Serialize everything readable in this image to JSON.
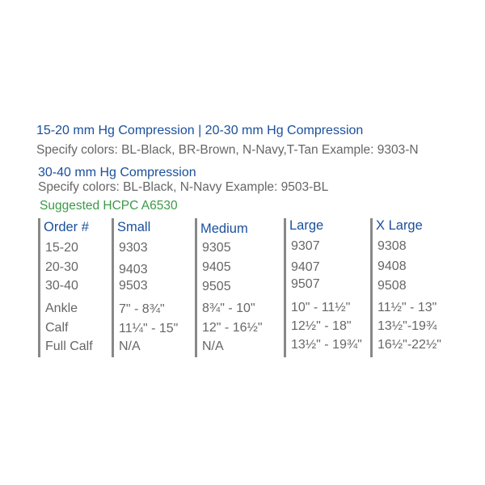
{
  "heading1": "15-20 mm Hg Compression  |  20-30 mm Hg Compression",
  "colors1": "Specify colors: BL-Black, BR-Brown, N-Navy,T-Tan Example: 9303-N",
  "heading2": "30-40 mm Hg Compression",
  "colors2": "Specify colors: BL-Black, N-Navy Example: 9503-BL",
  "hcpc": "Suggested HCPC A6530",
  "table": {
    "columns": [
      {
        "header": "Order #",
        "cells": [
          "15-20",
          "20-30",
          "30-40",
          "Ankle",
          "Calf",
          "Full Calf"
        ]
      },
      {
        "header": "Small",
        "cells": [
          "9303",
          "9403",
          "9503",
          "7\" - 8¾\"",
          "11¼\" - 15\"",
          "N/A"
        ]
      },
      {
        "header": "Medium",
        "cells": [
          "9305",
          "9405",
          "9505",
          "8¾\" - 10\"",
          "12\" - 16½\"",
          "N/A"
        ]
      },
      {
        "header": "Large",
        "cells": [
          "9307",
          "9407",
          "9507",
          "10\" -  11½\"",
          "12½\" - 18\"",
          "13½\" - 19¾\""
        ]
      },
      {
        "header": "X Large",
        "cells": [
          "9308",
          "9408",
          "9508",
          "11½\" - 13\"",
          "13½\"-19¾",
          "16½\"-22½\""
        ]
      }
    ]
  }
}
